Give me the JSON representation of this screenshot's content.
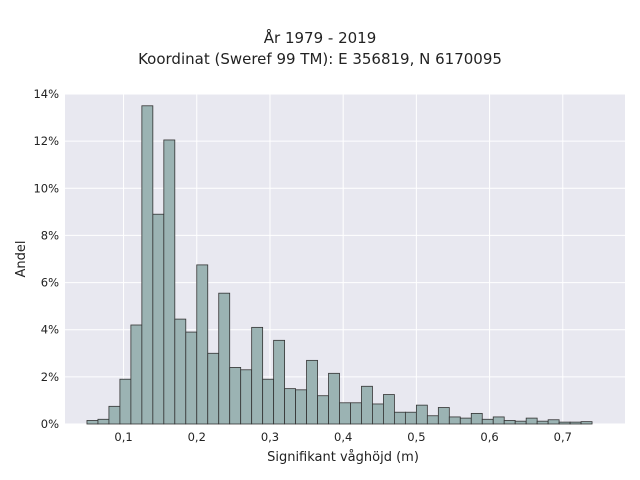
{
  "chart_data": {
    "type": "bar",
    "title": "År 1979 - 2019",
    "subtitle": "Koordinat (Sweref 99 TM): E 356819, N 6170095",
    "xlabel": "Signifikant våghöjd (m)",
    "ylabel": "Andel",
    "xlim": [
      0.02,
      0.785
    ],
    "ylim": [
      0,
      14
    ],
    "x_ticks": [
      0.1,
      0.2,
      0.3,
      0.4,
      0.5,
      0.6,
      0.7
    ],
    "x_tick_labels": [
      "0,1",
      "0,2",
      "0,3",
      "0,4",
      "0,5",
      "0,6",
      "0,7"
    ],
    "y_ticks": [
      0,
      2,
      4,
      6,
      8,
      10,
      12,
      14
    ],
    "y_tick_labels": [
      "0%",
      "2%",
      "4%",
      "6%",
      "8%",
      "10%",
      "12%",
      "14%"
    ],
    "grid": true,
    "bar_color": "#9bb3b3",
    "bar_edge_color": "#333333",
    "plot_background": "#e8e8f0",
    "bin_width": 0.015,
    "bin_starts": [
      0.05,
      0.065,
      0.08,
      0.095,
      0.11,
      0.125,
      0.14,
      0.155,
      0.17,
      0.185,
      0.2,
      0.215,
      0.23,
      0.245,
      0.26,
      0.275,
      0.29,
      0.305,
      0.32,
      0.335,
      0.35,
      0.365,
      0.38,
      0.395,
      0.41,
      0.425,
      0.44,
      0.455,
      0.47,
      0.485,
      0.5,
      0.515,
      0.53,
      0.545,
      0.56,
      0.575,
      0.59,
      0.605,
      0.62,
      0.635,
      0.65,
      0.665,
      0.68,
      0.695,
      0.71,
      0.725
    ],
    "values": [
      0.15,
      0.2,
      0.75,
      1.9,
      4.2,
      13.5,
      8.9,
      12.05,
      4.45,
      3.9,
      6.75,
      3.0,
      5.55,
      2.4,
      2.3,
      4.1,
      1.9,
      3.55,
      1.5,
      1.45,
      2.7,
      1.2,
      2.15,
      0.9,
      0.9,
      1.6,
      0.85,
      1.25,
      0.5,
      0.5,
      0.8,
      0.35,
      0.7,
      0.3,
      0.25,
      0.45,
      0.2,
      0.3,
      0.15,
      0.12,
      0.25,
      0.12,
      0.18,
      0.08,
      0.08,
      0.1
    ]
  }
}
